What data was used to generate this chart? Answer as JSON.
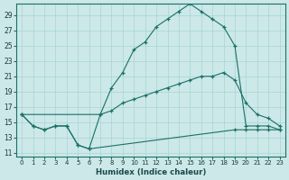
{
  "xlabel": "Humidex (Indice chaleur)",
  "bg_color": "#cce8e8",
  "line_color": "#1a7068",
  "grid_color": "#a8d4d4",
  "xlim": [
    -0.5,
    23.5
  ],
  "ylim": [
    10.5,
    30.5
  ],
  "yticks": [
    11,
    13,
    15,
    17,
    19,
    21,
    23,
    25,
    27,
    29
  ],
  "xticks": [
    0,
    1,
    2,
    3,
    4,
    5,
    6,
    7,
    8,
    9,
    10,
    11,
    12,
    13,
    14,
    15,
    16,
    17,
    18,
    19,
    20,
    21,
    22,
    23
  ],
  "line_upper_x": [
    0,
    1,
    2,
    3,
    4,
    5,
    6,
    7,
    8,
    9,
    10,
    11,
    12,
    13,
    14,
    15,
    16,
    17,
    18,
    19,
    20,
    21,
    22,
    23
  ],
  "line_upper_y": [
    16,
    14.5,
    14,
    14.5,
    14.5,
    12,
    11.5,
    16,
    19.5,
    21.5,
    24.5,
    25.5,
    27.5,
    28.5,
    29.5,
    30.5,
    29.5,
    28.5,
    27.5,
    25,
    14.5,
    14.5,
    14.5,
    14
  ],
  "line_mid_x": [
    0,
    7,
    8,
    9,
    10,
    11,
    12,
    13,
    14,
    15,
    16,
    17,
    18,
    19,
    20,
    21,
    22,
    23
  ],
  "line_mid_y": [
    16,
    16,
    16.5,
    17.5,
    18,
    18.5,
    19,
    19.5,
    20,
    20.5,
    21,
    21,
    21.5,
    20.5,
    17.5,
    16,
    15.5,
    14.5
  ],
  "line_flat_x": [
    0,
    1,
    2,
    3,
    4,
    5,
    6,
    19,
    20,
    21,
    22,
    23
  ],
  "line_flat_y": [
    16,
    14.5,
    14,
    14.5,
    14.5,
    12,
    11.5,
    14,
    14,
    14,
    14,
    14
  ]
}
